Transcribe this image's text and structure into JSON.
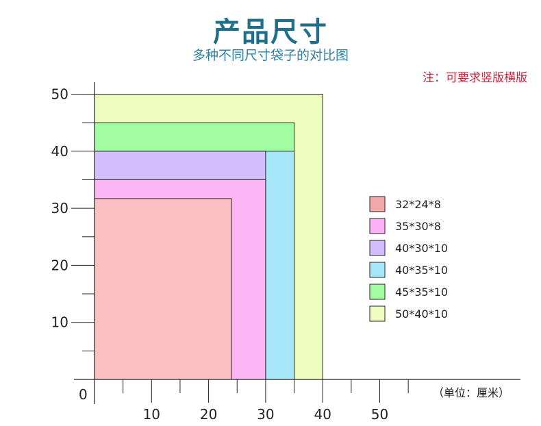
{
  "title": "产品尺寸",
  "subtitle": "多种不同尺寸袋子的对比图",
  "note": "注：可要求竖版横版",
  "unit_label": "（单位：厘米）",
  "origin_label": "0",
  "colors": {
    "title": "#1f6f8b",
    "subtitle": "#2c7fa0",
    "note": "#d0223a"
  },
  "chart_data": {
    "type": "area",
    "xlim": [
      0,
      50
    ],
    "ylim": [
      0,
      50
    ],
    "x_tick_labels": [
      "10",
      "20",
      "30",
      "40",
      "50"
    ],
    "y_tick_labels": [
      "10",
      "20",
      "30",
      "40",
      "50"
    ],
    "x_ticks": [
      10,
      20,
      30,
      40,
      50
    ],
    "y_ticks": [
      10,
      20,
      30,
      40,
      50
    ],
    "grid": false,
    "legend_position": "right",
    "series": [
      {
        "name": "50*40*10",
        "width": 40,
        "height": 50,
        "color": "#eefcc0"
      },
      {
        "name": "45*35*10",
        "width": 35,
        "height": 45,
        "color": "#a2fda2"
      },
      {
        "name": "40*35*10",
        "width": 35,
        "height": 40,
        "color": "#a8e6fa"
      },
      {
        "name": "40*30*10",
        "width": 30,
        "height": 40,
        "color": "#d3bdfc"
      },
      {
        "name": "35*30*8",
        "width": 30,
        "height": 35,
        "color": "#fcb6f6"
      },
      {
        "name": "32*24*8",
        "width": 24,
        "height": 31.7,
        "color": "#fcc0c0"
      }
    ],
    "legend": [
      {
        "name": "32*24*8",
        "color": "#f2a9a9"
      },
      {
        "name": "35*30*8",
        "color": "#fcb0f6"
      },
      {
        "name": "40*30*10",
        "color": "#d3bdfc"
      },
      {
        "name": "40*35*10",
        "color": "#a8e6fa"
      },
      {
        "name": "45*35*10",
        "color": "#a2fda2"
      },
      {
        "name": "50*40*10",
        "color": "#eefcc0"
      }
    ]
  }
}
